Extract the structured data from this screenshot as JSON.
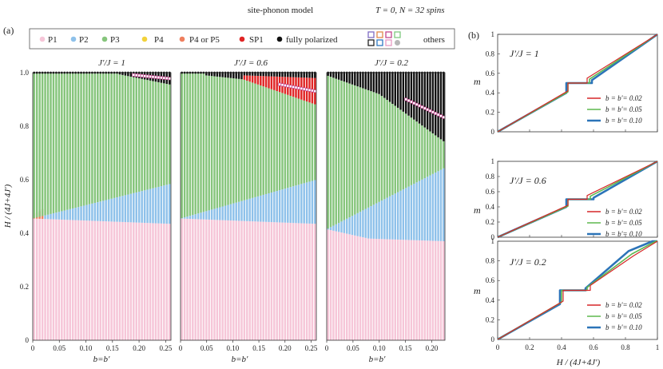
{
  "header": {
    "title": "site-phonon model",
    "condition": "T = 0,  N = 32 spins"
  },
  "legend": {
    "items": [
      {
        "key": "P1",
        "label": "P1",
        "color": "#f6c6d8"
      },
      {
        "key": "P2",
        "label": "P2",
        "color": "#8ec1ea"
      },
      {
        "key": "P3",
        "label": "P3",
        "color": "#86c57c"
      },
      {
        "key": "P4",
        "label": "P4",
        "color": "#f2d23b"
      },
      {
        "key": "P45",
        "label": "P4 or P5",
        "color": "#ef7f5e"
      },
      {
        "key": "SP1",
        "label": "SP1",
        "color": "#e02525"
      },
      {
        "key": "FP",
        "label": "fully polarized",
        "color": "#111111"
      },
      {
        "key": "others",
        "label": "others",
        "color": "#888888"
      }
    ],
    "others_colors": [
      "#7f6cc3",
      "#e0894a",
      "#c3468f",
      "#7fc97f",
      "#222222",
      "#2f79c4",
      "#e79ac2",
      "#b7b7b7"
    ]
  },
  "chart_data": [
    {
      "id": "a",
      "panel_label": "(a)",
      "type": "heatmap",
      "ylabel": "H / (4J+4J′)",
      "yticks": [
        "0",
        "0.2",
        "0.4",
        "0.6",
        "0.8",
        "1.0"
      ],
      "subplots": [
        {
          "title": "J′/J = 1",
          "xlabel": "b=b′",
          "xlim": [
            0,
            0.26
          ],
          "xticks": [
            "0",
            "0.05",
            "0.10",
            "0.15",
            "0.20",
            "0.25"
          ],
          "xtick_values": [
            0,
            0.05,
            0.1,
            0.15,
            0.2,
            0.25
          ],
          "boundary_P1_top": [
            [
              0,
              0.455
            ],
            [
              0.26,
              0.435
            ]
          ],
          "boundary_P2_top": [
            [
              0,
              0.455
            ],
            [
              0.26,
              0.585
            ]
          ],
          "boundary_P3_top": [
            [
              0,
              1.0
            ],
            [
              0.16,
              0.995
            ],
            [
              0.26,
              0.955
            ]
          ],
          "P45_region": [
            [
              0,
              0.455
            ],
            [
              0.01,
              0.46
            ],
            [
              0.02,
              0.475
            ]
          ],
          "FP_from": 0.995
        },
        {
          "title": "J′/J = 0.6",
          "xlabel": "b=b′",
          "xlim": [
            0,
            0.26
          ],
          "xticks": [
            "0",
            "0.05",
            "0.10",
            "0.15",
            "0.20",
            "0.25"
          ],
          "xtick_values": [
            0,
            0.05,
            0.1,
            0.15,
            0.2,
            0.25
          ],
          "boundary_P1_top": [
            [
              0,
              0.455
            ],
            [
              0.26,
              0.435
            ]
          ],
          "boundary_P2_top": [
            [
              0,
              0.455
            ],
            [
              0.26,
              0.6
            ]
          ],
          "boundary_P3_top": [
            [
              0,
              1.0
            ],
            [
              0.12,
              0.975
            ],
            [
              0.26,
              0.88
            ]
          ],
          "SP1_top": [
            [
              0.12,
              0.99
            ],
            [
              0.26,
              0.98
            ]
          ],
          "FP_from": 0.99
        },
        {
          "title": "J′/J = 0.2",
          "xlabel": "b=b′",
          "xlim": [
            0,
            0.225
          ],
          "xticks": [
            "0",
            "0.05",
            "0.10",
            "0.15",
            "0.20"
          ],
          "xtick_values": [
            0,
            0.05,
            0.1,
            0.15,
            0.2
          ],
          "boundary_P1_top": [
            [
              0,
              0.415
            ],
            [
              0.08,
              0.38
            ],
            [
              0.225,
              0.37
            ]
          ],
          "boundary_P2_top": [
            [
              0,
              0.415
            ],
            [
              0.225,
              0.645
            ]
          ],
          "boundary_P3_top": [
            [
              0,
              0.99
            ],
            [
              0.1,
              0.92
            ],
            [
              0.225,
              0.74
            ]
          ],
          "P4_region": [
            [
              0,
              0.415
            ],
            [
              0.03,
              0.39
            ],
            [
              0.045,
              0.375
            ]
          ],
          "FP_from": 0.99
        }
      ]
    },
    {
      "id": "b",
      "panel_label": "(b)",
      "type": "line",
      "ylabel": "m",
      "xlabel": "H / (4J+4J′)",
      "xlim": [
        0,
        1
      ],
      "ylim": [
        0,
        1
      ],
      "xticks": [
        "0",
        "0.2",
        "0.4",
        "0.6",
        "0.8",
        "1"
      ],
      "yticks": [
        "0",
        "0.2",
        "0.4",
        "0.6",
        "0.8",
        "1"
      ],
      "series_colors": [
        "#d62728",
        "#5fb84f",
        "#2c74b8"
      ],
      "series_labels": [
        "b = b′= 0.02",
        "b = b′= 0.05",
        "b = b′= 0.10"
      ],
      "subplots": [
        {
          "title": "J′/J = 1",
          "series": [
            {
              "name": "b = b′= 0.02",
              "x": [
                0,
                0.44,
                0.44,
                0.56,
                0.56,
                1
              ],
              "y": [
                0,
                0.42,
                0.5,
                0.5,
                0.55,
                1
              ]
            },
            {
              "name": "b = b′= 0.05",
              "x": [
                0,
                0.44,
                0.44,
                0.575,
                0.575,
                1
              ],
              "y": [
                0,
                0.41,
                0.5,
                0.5,
                0.54,
                1
              ]
            },
            {
              "name": "b = b′= 0.10",
              "x": [
                0,
                0.43,
                0.43,
                0.59,
                0.59,
                1
              ],
              "y": [
                0,
                0.4,
                0.5,
                0.5,
                0.53,
                1
              ]
            }
          ]
        },
        {
          "title": "J′/J = 0.6",
          "series": [
            {
              "name": "b = b′= 0.02",
              "x": [
                0,
                0.44,
                0.44,
                0.56,
                0.56,
                1
              ],
              "y": [
                0,
                0.42,
                0.5,
                0.5,
                0.55,
                1
              ]
            },
            {
              "name": "b = b′= 0.05",
              "x": [
                0,
                0.44,
                0.44,
                0.58,
                0.58,
                1
              ],
              "y": [
                0,
                0.41,
                0.5,
                0.5,
                0.54,
                1
              ]
            },
            {
              "name": "b = b′= 0.10",
              "x": [
                0,
                0.43,
                0.43,
                0.6,
                0.6,
                1
              ],
              "y": [
                0,
                0.4,
                0.5,
                0.5,
                0.52,
                1
              ]
            }
          ]
        },
        {
          "title": "J′/J = 0.2",
          "series": [
            {
              "name": "b = b′= 0.02",
              "x": [
                0,
                0.41,
                0.41,
                0.58,
                0.58,
                0.85,
                1
              ],
              "y": [
                0,
                0.39,
                0.5,
                0.5,
                0.55,
                0.85,
                1
              ]
            },
            {
              "name": "b = b′= 0.05",
              "x": [
                0,
                0.4,
                0.4,
                0.56,
                0.56,
                0.84,
                0.99,
                1
              ],
              "y": [
                0,
                0.38,
                0.5,
                0.5,
                0.53,
                0.87,
                1,
                1
              ]
            },
            {
              "name": "b = b′= 0.10",
              "x": [
                0,
                0.39,
                0.39,
                0.55,
                0.55,
                0.82,
                0.97,
                1
              ],
              "y": [
                0,
                0.36,
                0.5,
                0.5,
                0.52,
                0.9,
                1,
                1
              ]
            }
          ]
        }
      ]
    }
  ]
}
